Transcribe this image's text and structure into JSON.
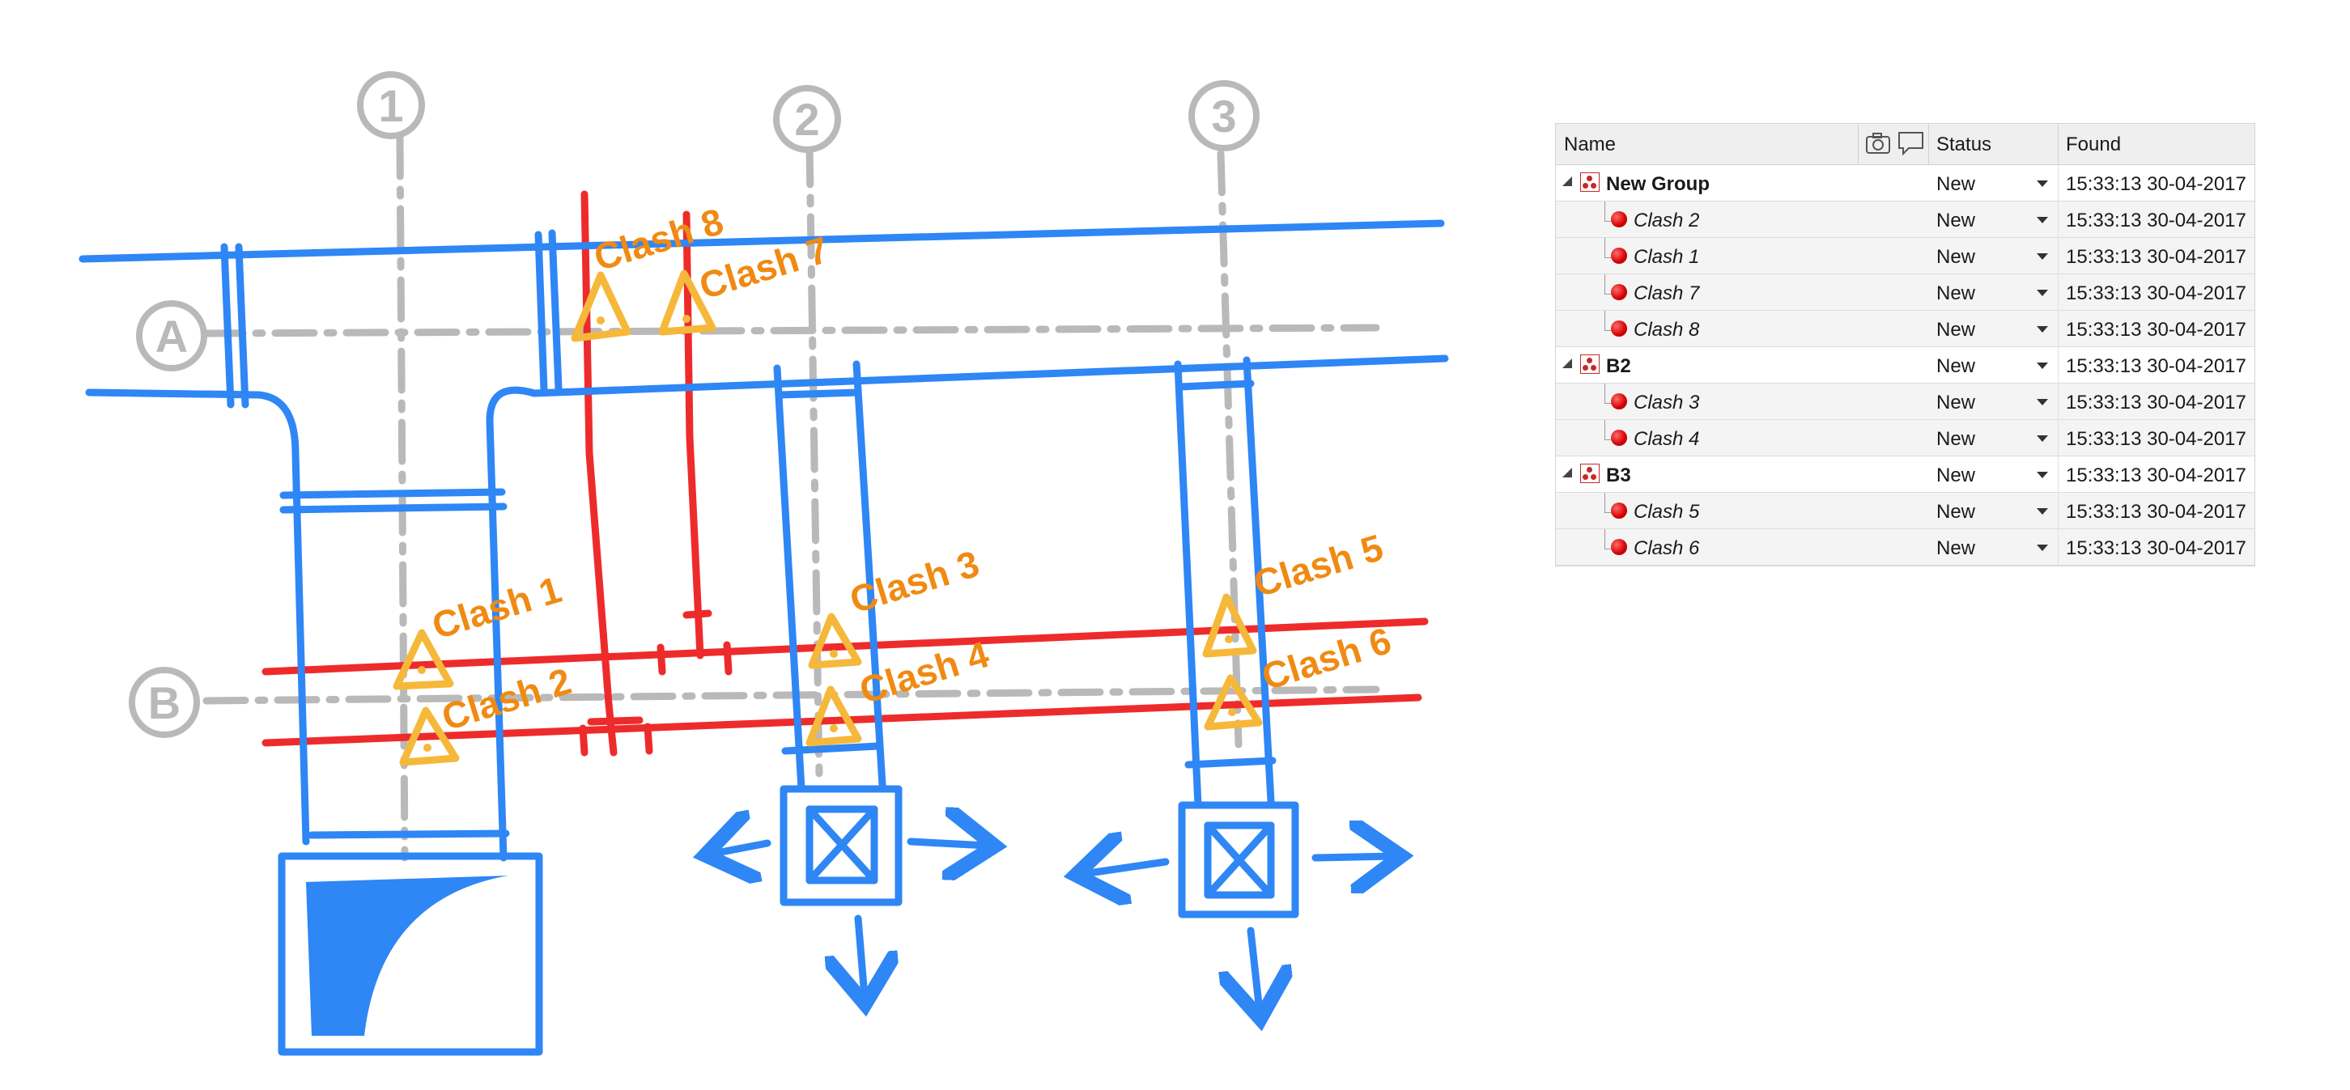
{
  "diagram": {
    "grid_labels": [
      "1",
      "2",
      "3",
      "A",
      "B"
    ],
    "clash_labels": [
      "Clash 1",
      "Clash 2",
      "Clash 3",
      "Clash 4",
      "Clash 5",
      "Clash 6",
      "Clash 7",
      "Clash 8"
    ],
    "colors": {
      "duct": "#2f86f5",
      "pipe": "#ee2b2b",
      "grid": "#b9b9b9",
      "warning": "#f6b83a",
      "label": "#f08a12"
    }
  },
  "clash_tree": {
    "columns": {
      "name": "Name",
      "status": "Status",
      "found": "Found"
    },
    "header_icons": [
      "camera-icon",
      "comment-icon"
    ],
    "rows": [
      {
        "type": "group",
        "name": "New Group",
        "status": "New",
        "found": "15:33:13 30-04-2017"
      },
      {
        "type": "clash",
        "name": "Clash 2",
        "status": "New",
        "found": "15:33:13 30-04-2017"
      },
      {
        "type": "clash",
        "name": "Clash 1",
        "status": "New",
        "found": "15:33:13 30-04-2017"
      },
      {
        "type": "clash",
        "name": "Clash 7",
        "status": "New",
        "found": "15:33:13 30-04-2017"
      },
      {
        "type": "clash",
        "name": "Clash 8",
        "status": "New",
        "found": "15:33:13 30-04-2017"
      },
      {
        "type": "group",
        "name": "B2",
        "status": "New",
        "found": "15:33:13 30-04-2017"
      },
      {
        "type": "clash",
        "name": "Clash 3",
        "status": "New",
        "found": "15:33:13 30-04-2017"
      },
      {
        "type": "clash",
        "name": "Clash 4",
        "status": "New",
        "found": "15:33:13 30-04-2017"
      },
      {
        "type": "group",
        "name": "B3",
        "status": "New",
        "found": "15:33:13 30-04-2017"
      },
      {
        "type": "clash",
        "name": "Clash 5",
        "status": "New",
        "found": "15:33:13 30-04-2017"
      },
      {
        "type": "clash",
        "name": "Clash 6",
        "status": "New",
        "found": "15:33:13 30-04-2017"
      }
    ]
  }
}
